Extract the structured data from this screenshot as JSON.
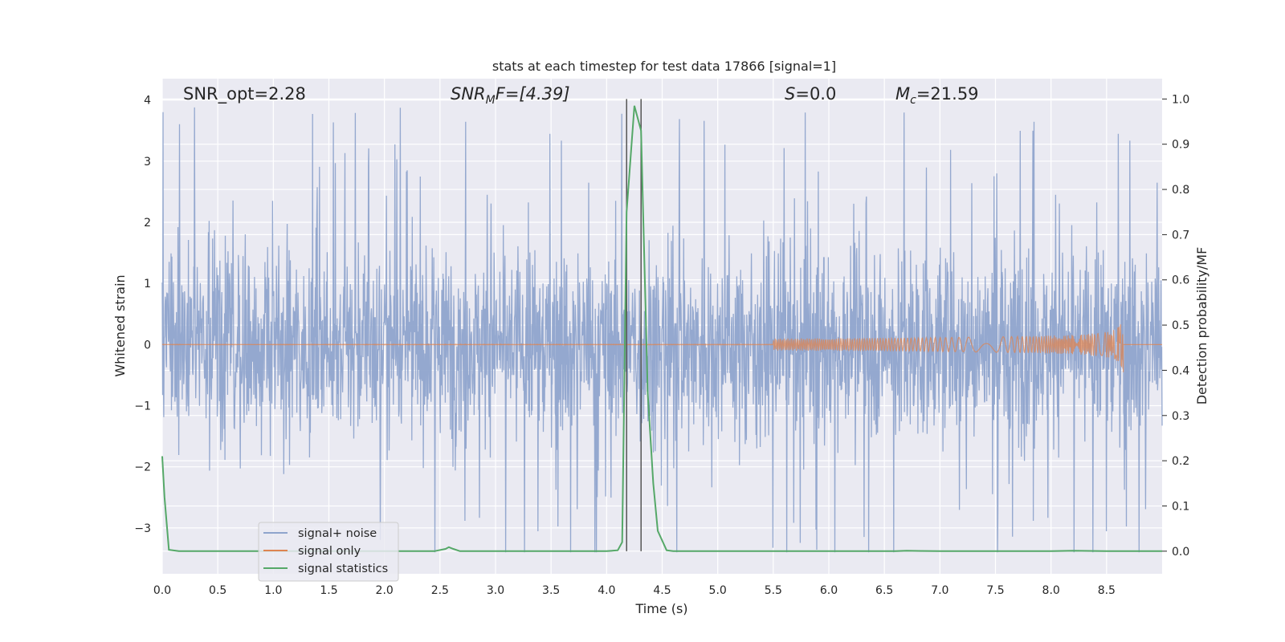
{
  "chart_data": {
    "type": "line",
    "title": "stats at each timestep for test data 17866 [signal=1]",
    "xlabel": "Time (s)",
    "ylabel_left": "Whitened strain",
    "ylabel_right": "Detection probability/MF",
    "xlim": [
      0.0,
      9.0
    ],
    "ylim_left": [
      -3.75,
      4.35
    ],
    "ylim_right": [
      -0.05,
      1.045
    ],
    "x_ticks": [
      "0.0",
      "0.5",
      "1.0",
      "1.5",
      "2.0",
      "2.5",
      "3.0",
      "3.5",
      "4.0",
      "4.5",
      "5.0",
      "5.5",
      "6.0",
      "6.5",
      "7.0",
      "7.5",
      "8.0",
      "8.5"
    ],
    "y_ticks_left": [
      "−3",
      "−2",
      "−1",
      "0",
      "1",
      "2",
      "3",
      "4"
    ],
    "y_ticks_right": [
      "0.0",
      "0.1",
      "0.2",
      "0.3",
      "0.4",
      "0.5",
      "0.6",
      "0.7",
      "0.8",
      "0.9",
      "1.0"
    ],
    "grid": true,
    "legend_position": "lower-left",
    "annotations": {
      "snr_opt": "SNR_opt=2.28",
      "snr_mf_main": "SNR",
      "snr_mf_sub": "M",
      "snr_mf_tail": "F=[4.39]",
      "s_main": "S",
      "s_tail": "=0.0",
      "mc_main": "M",
      "mc_sub": "c",
      "mc_tail": "=21.59"
    },
    "vertical_lines_x": [
      4.18,
      4.31
    ],
    "noise_envelope": {
      "typical_amplitude": 1.3,
      "peak_max": 4.0,
      "peak_min": -3.4
    },
    "series": [
      {
        "name": "signal+ noise",
        "color": "#8fa4cc",
        "axis": "left",
        "t_start": 0.0,
        "t_end": 9.0
      },
      {
        "name": "signal only",
        "color": "#dd8452",
        "axis": "left",
        "chirp_end_time": 8.65,
        "chirp_peak_amplitude": 0.52
      },
      {
        "name": "signal statistics",
        "color": "#55a868",
        "axis": "right",
        "x": [
          0.0,
          0.02,
          0.06,
          0.15,
          0.3,
          1.0,
          2.0,
          2.45,
          2.55,
          2.58,
          2.62,
          2.68,
          2.8,
          3.5,
          4.0,
          4.1,
          4.14,
          4.18,
          4.25,
          4.31,
          4.37,
          4.42,
          4.46,
          4.54,
          4.6,
          5.0,
          6.0,
          6.6,
          6.7,
          7.0,
          8.0,
          8.2,
          8.5,
          9.0
        ],
        "y": [
          0.21,
          0.12,
          0.003,
          0.0,
          0.0,
          0.0,
          0.0,
          0.0,
          0.005,
          0.009,
          0.005,
          0.0,
          0.0,
          0.0,
          0.0,
          0.002,
          0.02,
          0.75,
          0.985,
          0.93,
          0.35,
          0.15,
          0.045,
          0.002,
          0.0,
          0.0,
          0.0,
          0.0,
          0.001,
          0.0,
          0.0,
          0.001,
          0.0,
          0.0
        ]
      }
    ]
  }
}
